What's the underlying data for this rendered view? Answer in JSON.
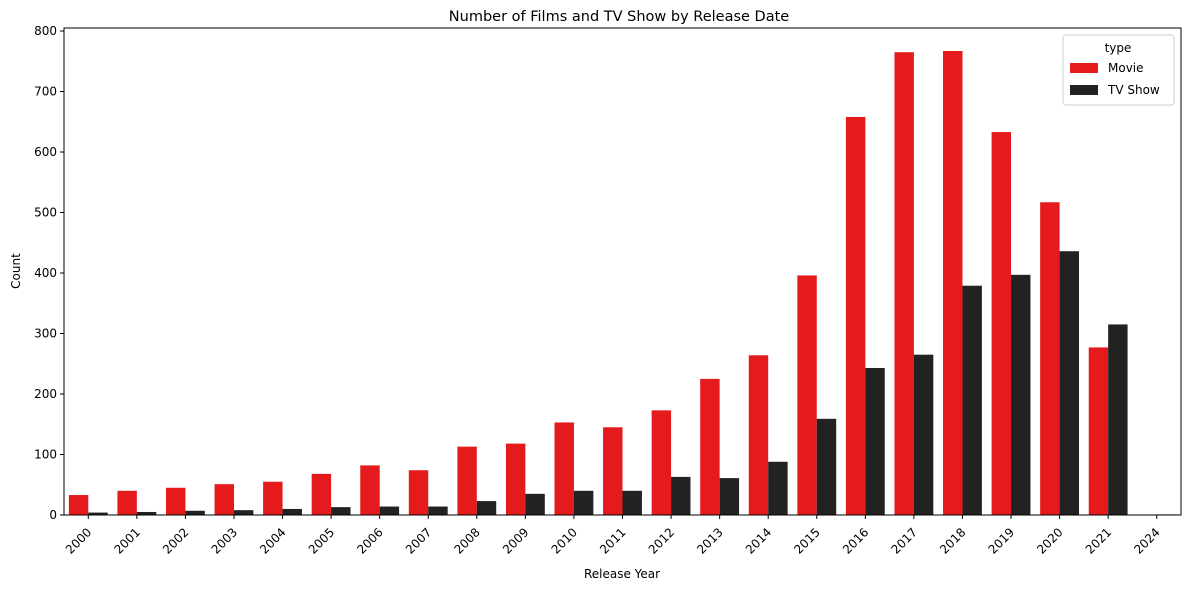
{
  "chart_data": {
    "type": "bar",
    "title": "Number of Films and TV Show by Release Date",
    "xlabel": "Release Year",
    "ylabel": "Count",
    "ylim": [
      0,
      805
    ],
    "yticks": [
      0,
      100,
      200,
      300,
      400,
      500,
      600,
      700,
      800
    ],
    "categories": [
      "2000",
      "2001",
      "2002",
      "2003",
      "2004",
      "2005",
      "2006",
      "2007",
      "2008",
      "2009",
      "2010",
      "2011",
      "2012",
      "2013",
      "2014",
      "2015",
      "2016",
      "2017",
      "2018",
      "2019",
      "2020",
      "2021",
      "2024"
    ],
    "series": [
      {
        "name": "Movie",
        "color": "#e41a1c",
        "values": [
          33,
          40,
          45,
          51,
          55,
          68,
          82,
          74,
          113,
          118,
          153,
          145,
          173,
          225,
          264,
          396,
          658,
          765,
          767,
          633,
          517,
          277,
          0
        ]
      },
      {
        "name": "TV Show",
        "color": "#222222",
        "values": [
          4,
          5,
          7,
          8,
          10,
          13,
          14,
          14,
          23,
          35,
          40,
          40,
          63,
          61,
          88,
          159,
          243,
          265,
          379,
          397,
          436,
          315,
          1
        ]
      }
    ],
    "legend": {
      "title": "type",
      "placement": "top-right"
    },
    "grid": false
  }
}
